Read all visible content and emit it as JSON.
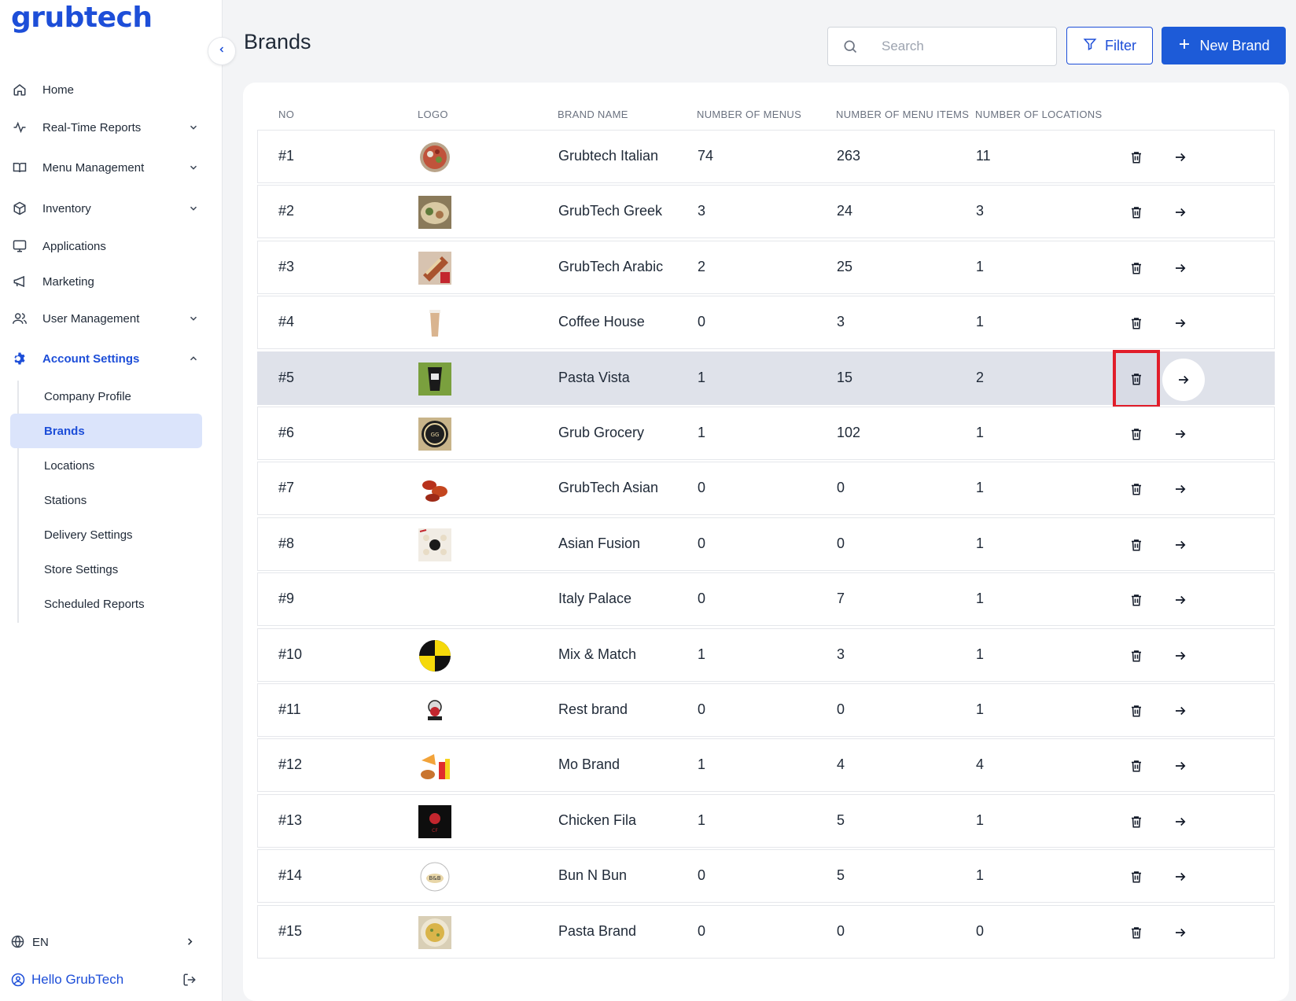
{
  "brand": {
    "name": "grubtech",
    "color": "#1d4ed8"
  },
  "sidebar": {
    "items": [
      {
        "label": "Home",
        "icon": "home-icon",
        "has_chevron": false
      },
      {
        "label": "Real-Time Reports",
        "icon": "activity-icon",
        "has_chevron": true
      },
      {
        "label": "Menu Management",
        "icon": "book-icon",
        "has_chevron": true
      },
      {
        "label": "Inventory",
        "icon": "box-icon",
        "has_chevron": true
      },
      {
        "label": "Applications",
        "icon": "monitor-icon",
        "has_chevron": false
      },
      {
        "label": "Marketing",
        "icon": "megaphone-icon",
        "has_chevron": false
      },
      {
        "label": "User Management",
        "icon": "users-icon",
        "has_chevron": true
      },
      {
        "label": "Account Settings",
        "icon": "gear-icon",
        "has_chevron": true,
        "expanded": true
      }
    ],
    "subitems": [
      {
        "label": "Company Profile"
      },
      {
        "label": "Brands",
        "active": true
      },
      {
        "label": "Locations"
      },
      {
        "label": "Stations"
      },
      {
        "label": "Delivery Settings"
      },
      {
        "label": "Store Settings"
      },
      {
        "label": "Scheduled Reports"
      }
    ],
    "language": "EN",
    "user_greeting": "Hello GrubTech"
  },
  "header": {
    "title": "Brands",
    "search_placeholder": "Search",
    "filter_label": "Filter",
    "new_brand_label": "New Brand"
  },
  "table": {
    "headers": [
      "NO",
      "LOGO",
      "BRAND NAME",
      "NUMBER OF MENUS",
      "NUMBER OF MENU ITEMS",
      "NUMBER OF LOCATIONS"
    ],
    "rows": [
      {
        "no": "#1",
        "name": "Grubtech Italian",
        "menus": "74",
        "items": "263",
        "locations": "11",
        "logo": "salad"
      },
      {
        "no": "#2",
        "name": "GrubTech Greek",
        "menus": "3",
        "items": "24",
        "locations": "3",
        "logo": "platter"
      },
      {
        "no": "#3",
        "name": "GrubTech Arabic",
        "menus": "2",
        "items": "25",
        "locations": "1",
        "logo": "wrap"
      },
      {
        "no": "#4",
        "name": "Coffee House",
        "menus": "0",
        "items": "3",
        "locations": "1",
        "logo": "coffee"
      },
      {
        "no": "#5",
        "name": "Pasta Vista",
        "menus": "1",
        "items": "15",
        "locations": "2",
        "logo": "dark-green",
        "highlighted": true
      },
      {
        "no": "#6",
        "name": "Grub Grocery",
        "menus": "1",
        "items": "102",
        "locations": "1",
        "logo": "grocery-badge"
      },
      {
        "no": "#7",
        "name": "GrubTech Asian",
        "menus": "0",
        "items": "0",
        "locations": "1",
        "logo": "wings"
      },
      {
        "no": "#8",
        "name": "Asian Fusion",
        "menus": "0",
        "items": "0",
        "locations": "1",
        "logo": "dumplings"
      },
      {
        "no": "#9",
        "name": "Italy Palace",
        "menus": "0",
        "items": "7",
        "locations": "1",
        "logo": "none"
      },
      {
        "no": "#10",
        "name": "Mix & Match",
        "menus": "1",
        "items": "3",
        "locations": "1",
        "logo": "checker-circle"
      },
      {
        "no": "#11",
        "name": "Rest brand",
        "menus": "0",
        "items": "0",
        "locations": "1",
        "logo": "chef"
      },
      {
        "no": "#12",
        "name": "Mo Brand",
        "menus": "1",
        "items": "4",
        "locations": "4",
        "logo": "fastfood"
      },
      {
        "no": "#13",
        "name": "Chicken Fila",
        "menus": "1",
        "items": "5",
        "locations": "1",
        "logo": "black-square"
      },
      {
        "no": "#14",
        "name": "Bun N Bun",
        "menus": "0",
        "items": "5",
        "locations": "1",
        "logo": "bun-circle"
      },
      {
        "no": "#15",
        "name": "Pasta Brand",
        "menus": "0",
        "items": "0",
        "locations": "0",
        "logo": "pasta-bowl"
      }
    ]
  },
  "colors": {
    "accent": "#1d5bd8",
    "highlight_row": "#dfe2ea",
    "highlight_outline": "#e11d2a",
    "active_sub_bg": "#dbe4fb"
  }
}
